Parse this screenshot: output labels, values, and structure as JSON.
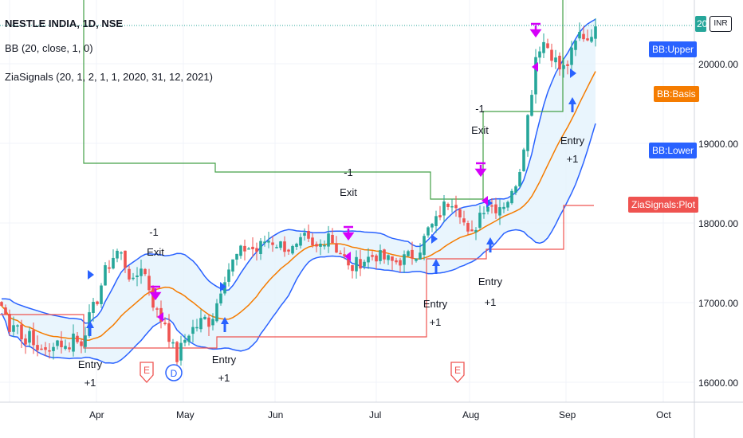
{
  "header": {
    "title": "NESTLE INDIA, 1D, NSE",
    "indicator_bb": "BB (20, close, 1, 0)",
    "indicator_zia": "ZiaSignals (20, 1, 2, 1, 1, 2020, 31, 12, 2021)",
    "currency_badge": "INR"
  },
  "colors": {
    "up": "#26a69a",
    "down": "#ef5350",
    "bb_band": "#2962ff",
    "bb_basis": "#f57c00",
    "fill": "#e3f2fd",
    "zia_green": "#43a047",
    "zia_red": "#ef5350",
    "arrow_blue": "#2962ff",
    "arrow_magenta": "#d500f9"
  },
  "price_scale": {
    "ticks": [
      "20000.00",
      "19000.00",
      "18000.00",
      "17000.00",
      "16000.00"
    ],
    "tags": {
      "upper": "BB:Upper",
      "basis": "BB:Basis",
      "lower": "BB:Lower",
      "plot": "ZiaSignals:Plot"
    },
    "last_value_fragment": "20"
  },
  "chart_data": {
    "type": "candlestick",
    "x_labels": [
      "Apr",
      "May",
      "Jun",
      "Jul",
      "Aug",
      "Sep",
      "Oct"
    ],
    "y_ticks": [
      16000,
      17000,
      18000,
      19000,
      20000
    ],
    "ylim": [
      15800,
      20700
    ],
    "signals": [
      {
        "label_top": "Entry",
        "label_bottom": "+1",
        "price": 16450
      },
      {
        "label_top": "-1",
        "label_bottom": "Exit",
        "price": 17050
      },
      {
        "label_top": "Entry",
        "label_bottom": "+1",
        "price": 16650
      },
      {
        "label_top": "-1",
        "label_bottom": "Exit",
        "price": 17850
      },
      {
        "label_top": "Entry",
        "label_bottom": "+1",
        "price": 17600
      },
      {
        "label_top": "Entry",
        "label_bottom": "+1",
        "price": 17750
      },
      {
        "label_top": "-1",
        "label_bottom": "Exit",
        "price": 18400
      },
      {
        "label_top": "Entry",
        "label_bottom": "+1",
        "price": 19400
      }
    ],
    "events": [
      "E",
      "D",
      "E"
    ]
  }
}
